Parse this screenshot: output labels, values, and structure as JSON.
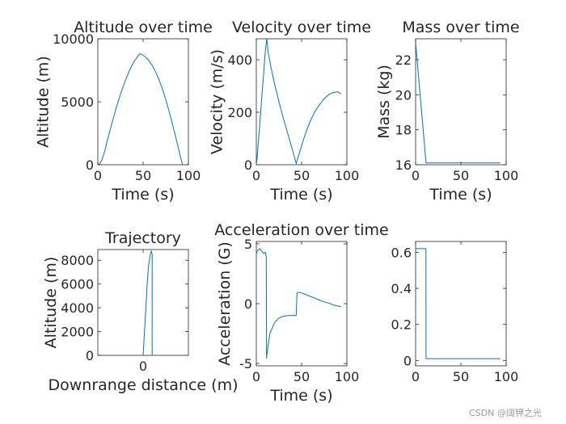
{
  "figure": {
    "watermark": "CSDN @阔钾之光",
    "background": "#ffffff",
    "line_color": "#0072bd",
    "axis_color": "#262626"
  },
  "chart_data": [
    {
      "id": "altitude",
      "type": "line",
      "title": "Altitude over time",
      "xlabel": "Time (s)",
      "ylabel": "Altitude (m)",
      "xlim": [
        0,
        100
      ],
      "ylim": [
        0,
        10000
      ],
      "xticks": [
        0,
        50,
        100
      ],
      "xtick_labels": [
        "0",
        "50",
        "100"
      ],
      "yticks": [
        0,
        5000,
        10000
      ],
      "ytick_labels": [
        "0",
        "5000",
        "10000"
      ],
      "x": [
        0,
        2,
        4,
        6,
        8,
        10,
        11.5,
        15,
        20,
        25,
        30,
        35,
        40,
        43,
        46,
        50,
        55,
        60,
        65,
        70,
        75,
        80,
        85,
        90,
        93.5
      ],
      "y": [
        0,
        80,
        320,
        700,
        1200,
        1800,
        2200,
        3150,
        4450,
        5600,
        6600,
        7500,
        8200,
        8500,
        8800,
        8700,
        8400,
        7900,
        7200,
        6300,
        5200,
        3900,
        2500,
        1000,
        0
      ]
    },
    {
      "id": "velocity",
      "type": "line",
      "title": "Velocity over time",
      "xlabel": "Time (s)",
      "ylabel": "Velocity (m/s)",
      "xlim": [
        0,
        100
      ],
      "ylim": [
        0,
        480
      ],
      "xticks": [
        0,
        50,
        100
      ],
      "xtick_labels": [
        "0",
        "50",
        "100"
      ],
      "yticks": [
        0,
        200,
        400
      ],
      "ytick_labels": [
        "0",
        "200",
        "400"
      ],
      "x": [
        0,
        1,
        2,
        4,
        6,
        8,
        10,
        11.5,
        13,
        16,
        20,
        25,
        30,
        35,
        40,
        44,
        48,
        52,
        56,
        60,
        65,
        70,
        75,
        80,
        85,
        90,
        93.5
      ],
      "y": [
        0,
        30,
        75,
        165,
        255,
        345,
        435,
        480,
        430,
        375,
        310,
        240,
        175,
        115,
        55,
        5,
        50,
        95,
        135,
        170,
        205,
        230,
        252,
        267,
        275,
        278,
        270
      ]
    },
    {
      "id": "mass",
      "type": "line",
      "title": "Mass over time",
      "xlabel": "Time (s)",
      "ylabel": "Mass (kg)",
      "xlim": [
        0,
        100
      ],
      "ylim": [
        16,
        23.2
      ],
      "xticks": [
        0,
        50,
        100
      ],
      "xtick_labels": [
        "0",
        "50",
        "100"
      ],
      "yticks": [
        16,
        18,
        20,
        22
      ],
      "ytick_labels": [
        "16",
        "18",
        "20",
        "22"
      ],
      "x": [
        0,
        11.5,
        12,
        93.5
      ],
      "y": [
        23,
        16.1,
        16.1,
        16.1
      ]
    },
    {
      "id": "trajectory",
      "type": "line",
      "title": "Trajectory",
      "xlabel": "Downrange distance (m)",
      "ylabel": "Altitude (m)",
      "xlim": [
        -1,
        1
      ],
      "ylim": [
        0,
        8900
      ],
      "xticks": [
        0
      ],
      "xtick_labels": [
        "0"
      ],
      "yticks": [
        0,
        2000,
        4000,
        6000,
        8000
      ],
      "ytick_labels": [
        "0",
        "2000",
        "4000",
        "6000",
        "8000"
      ],
      "x": [
        0,
        0.03,
        0.06,
        0.09,
        0.12,
        0.15,
        0.18,
        0.2,
        0.2,
        0.2,
        0.2
      ],
      "y": [
        0,
        2000,
        4000,
        6000,
        7500,
        8300,
        8800,
        8500,
        5000,
        2000,
        0
      ]
    },
    {
      "id": "acceleration",
      "type": "line",
      "title": "Acceleration over time",
      "xlabel": "Time (s)",
      "ylabel": "Acceleration (G)",
      "xlim": [
        0,
        100
      ],
      "ylim": [
        -5.2,
        5.2
      ],
      "xticks": [
        0,
        50,
        100
      ],
      "xtick_labels": [
        "0",
        "50",
        "100"
      ],
      "yticks": [
        -5,
        0,
        5
      ],
      "ytick_labels": [
        "-5",
        "0",
        "5"
      ],
      "x": [
        0,
        2,
        4,
        6,
        8,
        10,
        11,
        11.3,
        11.5,
        12,
        13,
        15,
        20,
        25,
        30,
        35,
        40,
        44,
        44.5,
        45,
        47,
        50,
        55,
        60,
        65,
        70,
        75,
        80,
        85,
        90,
        93.5
      ],
      "y": [
        4.2,
        4.5,
        4.6,
        4.4,
        4.2,
        4.3,
        3.9,
        -4.6,
        -4.3,
        -4.2,
        -3.5,
        -2.5,
        -1.6,
        -1.2,
        -1.05,
        -1.0,
        -1.0,
        -0.98,
        0.0,
        0.9,
        0.95,
        0.9,
        0.75,
        0.6,
        0.45,
        0.3,
        0.15,
        0.05,
        -0.1,
        -0.2,
        -0.25
      ]
    },
    {
      "id": "unlabeled",
      "type": "line",
      "title": "",
      "xlabel": "",
      "ylabel": "",
      "xlim": [
        0,
        100
      ],
      "ylim": [
        -0.03,
        0.66
      ],
      "xticks": [
        0,
        50,
        100
      ],
      "xtick_labels": [
        "0",
        "50",
        "100"
      ],
      "yticks": [
        0,
        0.2,
        0.4,
        0.6
      ],
      "ytick_labels": [
        "0",
        "0.2",
        "0.4",
        "0.6"
      ],
      "x": [
        0,
        11.4,
        11.5,
        93.5
      ],
      "y": [
        0.62,
        0.62,
        0.01,
        0.01
      ]
    }
  ]
}
